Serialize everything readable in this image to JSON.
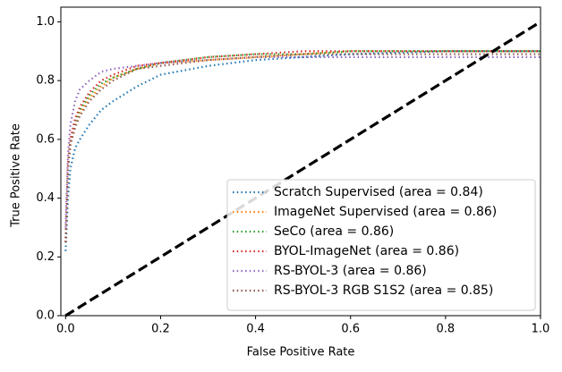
{
  "chart_data": {
    "type": "line",
    "xlabel": "False Positive Rate",
    "ylabel": "True Positive Rate",
    "x": [
      0,
      0.005,
      0.01,
      0.02,
      0.03,
      0.05,
      0.075,
      0.1,
      0.15,
      0.2,
      0.3,
      0.4,
      0.5,
      0.6,
      0.8,
      1.0
    ],
    "series": [
      {
        "name": "Scratch Supervised (area = 0.84)",
        "color": "#1f77b4",
        "values": [
          0.22,
          0.4,
          0.5,
          0.57,
          0.6,
          0.65,
          0.7,
          0.73,
          0.78,
          0.82,
          0.85,
          0.87,
          0.88,
          0.89,
          0.9,
          0.9
        ]
      },
      {
        "name": "ImageNet Supervised (area = 0.86)",
        "color": "#ff7f0e",
        "values": [
          0.25,
          0.5,
          0.58,
          0.65,
          0.69,
          0.74,
          0.78,
          0.81,
          0.84,
          0.86,
          0.87,
          0.88,
          0.89,
          0.9,
          0.9,
          0.9
        ]
      },
      {
        "name": "SeCo (area = 0.86)",
        "color": "#2ca02c",
        "values": [
          0.25,
          0.5,
          0.59,
          0.66,
          0.7,
          0.75,
          0.79,
          0.81,
          0.84,
          0.86,
          0.88,
          0.89,
          0.89,
          0.9,
          0.9,
          0.9
        ]
      },
      {
        "name": "BYOL-ImageNet (area = 0.86)",
        "color": "#d62728",
        "values": [
          0.25,
          0.52,
          0.6,
          0.67,
          0.71,
          0.76,
          0.8,
          0.82,
          0.85,
          0.86,
          0.88,
          0.89,
          0.9,
          0.9,
          0.9,
          0.9
        ]
      },
      {
        "name": "RS-BYOL-3 (area = 0.86)",
        "color": "#9467bd",
        "values": [
          0.3,
          0.55,
          0.65,
          0.73,
          0.77,
          0.8,
          0.83,
          0.84,
          0.85,
          0.86,
          0.87,
          0.88,
          0.88,
          0.88,
          0.88,
          0.88
        ]
      },
      {
        "name": "RS-BYOL-3 RGB S1S2 (area = 0.85)",
        "color": "#8c564b",
        "values": [
          0.25,
          0.5,
          0.58,
          0.64,
          0.68,
          0.73,
          0.77,
          0.8,
          0.84,
          0.85,
          0.87,
          0.88,
          0.89,
          0.89,
          0.89,
          0.89
        ]
      }
    ],
    "diagonal": {
      "x": [
        0,
        1
      ],
      "y": [
        0,
        1
      ],
      "color": "#000000"
    },
    "xlim": [
      -0.01,
      1.0
    ],
    "ylim": [
      0,
      1.05
    ],
    "xticks": [
      {
        "value": 0,
        "label": "0.0"
      },
      0.2,
      0.4,
      0.6,
      0.8,
      {
        "value": 1,
        "label": "1.0"
      }
    ],
    "yticks": [
      {
        "value": 0,
        "label": "0.0"
      },
      0.2,
      0.4,
      0.6,
      0.8,
      {
        "value": 1,
        "label": "1.0"
      }
    ],
    "legend": "lower right"
  }
}
